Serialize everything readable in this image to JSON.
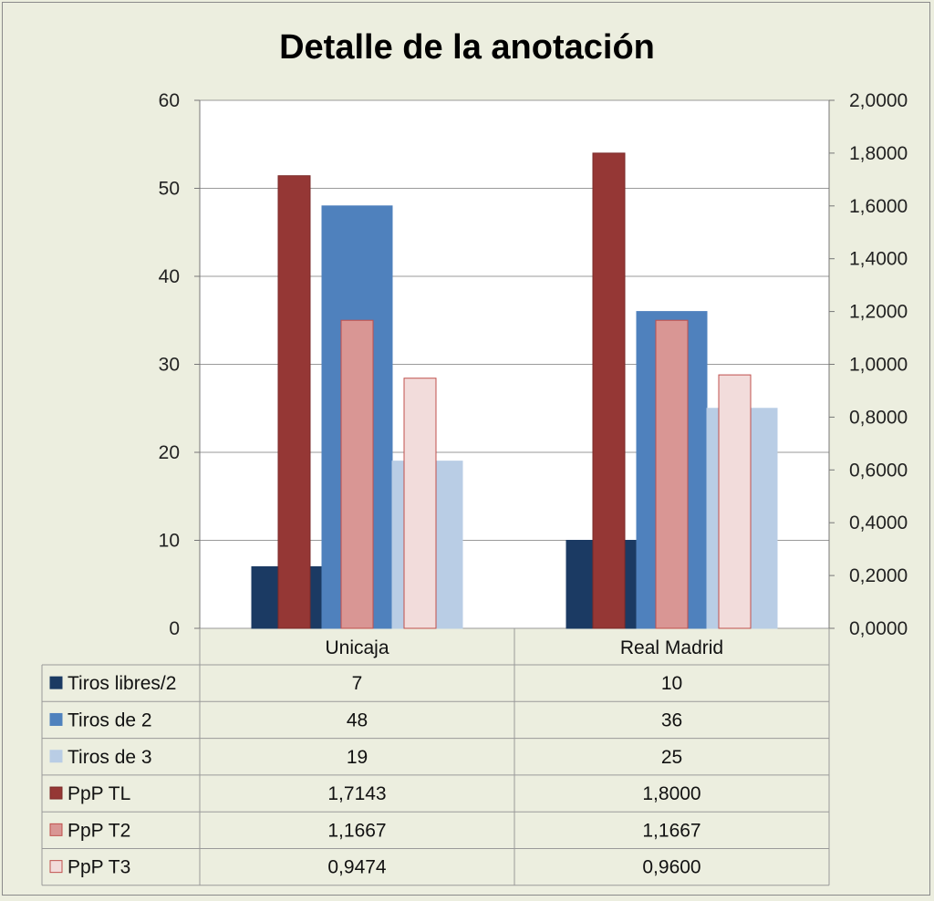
{
  "chart_data": {
    "type": "bar",
    "title": "Detalle de la anotación",
    "categories": [
      "Unicaja",
      "Real Madrid"
    ],
    "y_left": {
      "lim": [
        0,
        60
      ],
      "ticks": [
        "0",
        "10",
        "20",
        "30",
        "40",
        "50",
        "60"
      ]
    },
    "y_right": {
      "lim": [
        0,
        2
      ],
      "ticks": [
        "0,0000",
        "0,2000",
        "0,4000",
        "0,6000",
        "0,8000",
        "1,0000",
        "1,2000",
        "1,4000",
        "1,6000",
        "1,8000",
        "2,0000"
      ]
    },
    "grid": true,
    "series": [
      {
        "name": "Tiros libres/2",
        "axis": "left",
        "values": [
          7,
          10
        ],
        "labels": [
          "7",
          "10"
        ],
        "color": "#1b3a63",
        "border": "#1b3a63"
      },
      {
        "name": "Tiros de 2",
        "axis": "left",
        "values": [
          48,
          36
        ],
        "labels": [
          "48",
          "36"
        ],
        "color": "#4f81bd",
        "border": "#4f81bd"
      },
      {
        "name": "Tiros de 3",
        "axis": "left",
        "values": [
          19,
          25
        ],
        "labels": [
          "19",
          "25"
        ],
        "color": "#b9cde5",
        "border": "#b9cde5"
      },
      {
        "name": "PpP TL",
        "axis": "right",
        "values": [
          1.7143,
          1.8
        ],
        "labels": [
          "1,7143",
          "1,8000"
        ],
        "color": "#953735",
        "border": "#7a2a28"
      },
      {
        "name": "PpP T2",
        "axis": "right",
        "values": [
          1.1667,
          1.1667
        ],
        "labels": [
          "1,1667",
          "1,1667"
        ],
        "color": "#d99694",
        "border": "#c0504d"
      },
      {
        "name": "PpP T3",
        "axis": "right",
        "values": [
          0.9474,
          0.96
        ],
        "labels": [
          "0,9474",
          "0,9600"
        ],
        "color": "#f2dcdb",
        "border": "#c0504d"
      }
    ],
    "data_table": true
  }
}
